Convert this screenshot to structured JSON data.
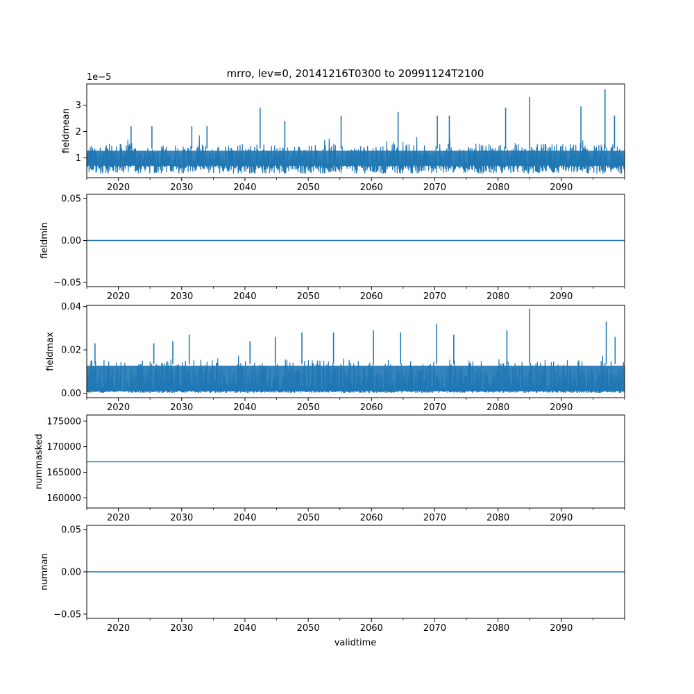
{
  "figure": {
    "title": "mrro, lev=0, 20141216T0300 to 20991124T2100",
    "xlabel": "validtime"
  },
  "chart_data": [
    {
      "type": "line",
      "ylabel": "fieldmean",
      "offset_text": "1e−5",
      "xlim": [
        2015.0,
        2100.0
      ],
      "x_ticks": [
        2020,
        2030,
        2040,
        2050,
        2060,
        2070,
        2080,
        2090
      ],
      "x_ticklabels": [
        "2020",
        "2030",
        "2040",
        "2050",
        "2060",
        "2070",
        "2080",
        "2090"
      ],
      "ylim": [
        0.25,
        3.8
      ],
      "y_ticks": [
        1,
        2,
        3
      ],
      "y_ticklabels": [
        "1",
        "2",
        "3"
      ],
      "y_unit_multiplier": "1e-5",
      "noise": {
        "min": 0.4,
        "typical_low": 0.7,
        "typical_high": 1.5,
        "upper": 1.9
      },
      "peaks": [
        {
          "x": 2022.0,
          "y": 2.2
        },
        {
          "x": 2025.3,
          "y": 2.2
        },
        {
          "x": 2031.6,
          "y": 2.2
        },
        {
          "x": 2034.0,
          "y": 2.2
        },
        {
          "x": 2042.4,
          "y": 2.9
        },
        {
          "x": 2046.3,
          "y": 2.4
        },
        {
          "x": 2055.2,
          "y": 2.6
        },
        {
          "x": 2064.2,
          "y": 2.75
        },
        {
          "x": 2070.4,
          "y": 2.6
        },
        {
          "x": 2072.3,
          "y": 2.6
        },
        {
          "x": 2081.2,
          "y": 2.9
        },
        {
          "x": 2085.0,
          "y": 3.3
        },
        {
          "x": 2093.1,
          "y": 2.95
        },
        {
          "x": 2096.9,
          "y": 3.6
        },
        {
          "x": 2098.4,
          "y": 2.6
        }
      ],
      "grid": false,
      "color": "#1f77b4"
    },
    {
      "type": "line",
      "ylabel": "fieldmin",
      "xlim": [
        2015.0,
        2100.0
      ],
      "x_ticks": [
        2020,
        2030,
        2040,
        2050,
        2060,
        2070,
        2080,
        2090
      ],
      "x_ticklabels": [
        "2020",
        "2030",
        "2040",
        "2050",
        "2060",
        "2070",
        "2080",
        "2090"
      ],
      "ylim": [
        -0.055,
        0.055
      ],
      "y_ticks": [
        -0.05,
        0.0,
        0.05
      ],
      "y_ticklabels": [
        "−0.05",
        "0.00",
        "0.05"
      ],
      "constant": 0.0,
      "grid": false,
      "color": "#1f77b4"
    },
    {
      "type": "line",
      "ylabel": "fieldmax",
      "xlim": [
        2015.0,
        2100.0
      ],
      "x_ticks": [
        2020,
        2030,
        2040,
        2050,
        2060,
        2070,
        2080,
        2090
      ],
      "x_ticklabels": [
        "2020",
        "2030",
        "2040",
        "2050",
        "2060",
        "2070",
        "2080",
        "2090"
      ],
      "ylim": [
        -0.002,
        0.0405
      ],
      "y_ticks": [
        0.0,
        0.02,
        0.04
      ],
      "y_ticklabels": [
        "0.00",
        "0.02",
        "0.04"
      ],
      "noise": {
        "min": 0.0002,
        "typical_low": 0.001,
        "typical_high": 0.015,
        "upper": 0.018
      },
      "peaks": [
        {
          "x": 2016.3,
          "y": 0.023
        },
        {
          "x": 2025.6,
          "y": 0.023
        },
        {
          "x": 2028.6,
          "y": 0.024
        },
        {
          "x": 2031.2,
          "y": 0.027
        },
        {
          "x": 2040.8,
          "y": 0.024
        },
        {
          "x": 2044.8,
          "y": 0.026
        },
        {
          "x": 2049.0,
          "y": 0.028
        },
        {
          "x": 2054.0,
          "y": 0.028
        },
        {
          "x": 2060.3,
          "y": 0.029
        },
        {
          "x": 2064.6,
          "y": 0.028
        },
        {
          "x": 2070.3,
          "y": 0.032
        },
        {
          "x": 2073.0,
          "y": 0.027
        },
        {
          "x": 2081.4,
          "y": 0.029
        },
        {
          "x": 2085.0,
          "y": 0.039
        },
        {
          "x": 2097.1,
          "y": 0.033
        },
        {
          "x": 2098.5,
          "y": 0.026
        }
      ],
      "grid": false,
      "color": "#1f77b4"
    },
    {
      "type": "line",
      "ylabel": "nummasked",
      "xlim": [
        2015.0,
        2100.0
      ],
      "x_ticks": [
        2020,
        2030,
        2040,
        2050,
        2060,
        2070,
        2080,
        2090
      ],
      "x_ticklabels": [
        "2020",
        "2030",
        "2040",
        "2050",
        "2060",
        "2070",
        "2080",
        "2090"
      ],
      "ylim": [
        158000,
        176200
      ],
      "y_ticks": [
        160000,
        165000,
        170000,
        175000
      ],
      "y_ticklabels": [
        "160000",
        "165000",
        "170000",
        "175000"
      ],
      "constant": 167050,
      "grid": false,
      "color": "#1f77b4"
    },
    {
      "type": "line",
      "ylabel": "numnan",
      "xlim": [
        2015.0,
        2100.0
      ],
      "x_ticks": [
        2020,
        2030,
        2040,
        2050,
        2060,
        2070,
        2080,
        2090
      ],
      "x_ticklabels": [
        "2020",
        "2030",
        "2040",
        "2050",
        "2060",
        "2070",
        "2080",
        "2090"
      ],
      "ylim": [
        -0.055,
        0.055
      ],
      "y_ticks": [
        -0.05,
        0.0,
        0.05
      ],
      "y_ticklabels": [
        "−0.05",
        "0.00",
        "0.05"
      ],
      "constant": 0.0,
      "grid": false,
      "color": "#1f77b4"
    }
  ]
}
